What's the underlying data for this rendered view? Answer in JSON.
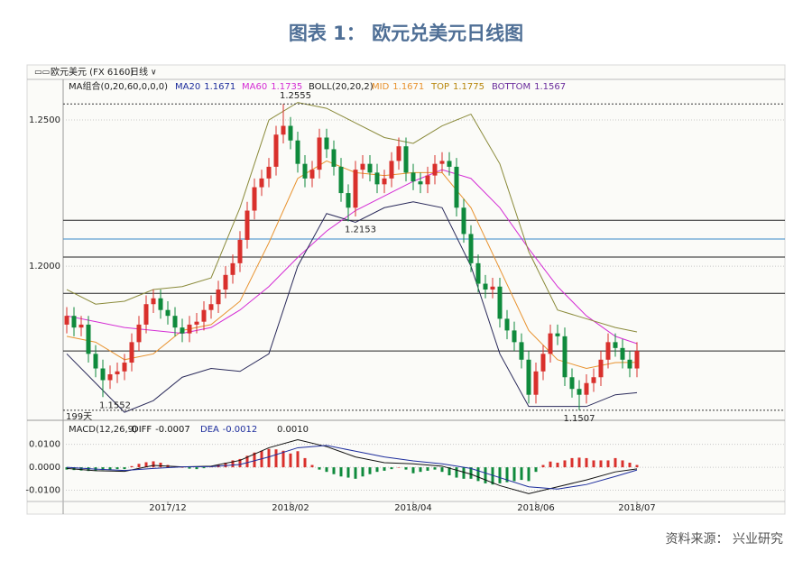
{
  "title": "图表 1： 欧元兑美元日线图",
  "source": "资料来源： 兴业研究",
  "chart_data": [
    {
      "type": "candlestick",
      "symbol": "欧元美元 (FX 6160)",
      "period": "日线",
      "span_label": "199天",
      "up_color": "#d9302c",
      "down_color": "#0f8a3c",
      "xlim": [
        -0.5,
        99.5
      ],
      "ylim": [
        1.1485,
        1.2639
      ],
      "yticks": [
        {
          "value": 1.25,
          "label": "1.2500"
        },
        {
          "value": 1.2,
          "label": "1.2000"
        }
      ],
      "grid": true,
      "hlines": [
        {
          "value": 1.2157,
          "color": "#222222"
        },
        {
          "value": 1.2093,
          "color": "#3a8ac8"
        },
        {
          "value": 1.2031,
          "color": "#222222"
        },
        {
          "value": 1.1907,
          "color": "#222222"
        },
        {
          "value": 1.171,
          "color": "#222222"
        }
      ],
      "indicator_groups": [
        {
          "title": "MA组合(0,20,60,0,0,0)",
          "items": [
            {
              "label": "MA20",
              "value": 1.1671,
              "color": "#1c2c9c",
              "line_color": "#e8922e",
              "x": [
                0,
                4,
                8,
                12,
                16,
                20,
                24,
                28,
                32,
                36,
                40,
                44,
                48,
                52,
                56,
                60,
                64,
                68,
                72,
                76,
                79
              ],
              "values": [
                1.176,
                1.174,
                1.168,
                1.17,
                1.178,
                1.18,
                1.188,
                1.208,
                1.23,
                1.236,
                1.232,
                1.231,
                1.232,
                1.232,
                1.22,
                1.199,
                1.178,
                1.168,
                1.165,
                1.167,
                1.1671
              ]
            },
            {
              "label": "MA60",
              "value": 1.1735,
              "color": "#d42cd4",
              "line_color": "#d42cd4",
              "x": [
                0,
                4,
                8,
                12,
                16,
                20,
                24,
                28,
                32,
                36,
                40,
                44,
                48,
                52,
                56,
                60,
                64,
                68,
                72,
                76,
                79
              ],
              "values": [
                1.183,
                1.181,
                1.179,
                1.178,
                1.177,
                1.179,
                1.185,
                1.193,
                1.203,
                1.212,
                1.219,
                1.224,
                1.229,
                1.233,
                1.23,
                1.22,
                1.206,
                1.193,
                1.183,
                1.176,
                1.1735
              ]
            }
          ]
        },
        {
          "title": "BOLL(20,20,2)",
          "items": [
            {
              "label": "MID",
              "value": 1.1671,
              "color": "#e8922e"
            },
            {
              "label": "TOP",
              "value": 1.1775,
              "color": "#b8860b",
              "line_color": "#8a8a3a",
              "x": [
                0,
                4,
                8,
                12,
                16,
                20,
                24,
                28,
                32,
                36,
                40,
                44,
                48,
                52,
                56,
                60,
                64,
                68,
                72,
                76,
                79
              ],
              "values": [
                1.192,
                1.187,
                1.188,
                1.192,
                1.193,
                1.196,
                1.22,
                1.25,
                1.256,
                1.254,
                1.249,
                1.244,
                1.242,
                1.248,
                1.252,
                1.235,
                1.205,
                1.185,
                1.182,
                1.179,
                1.1775
              ]
            },
            {
              "label": "BOTTOM",
              "value": 1.1567,
              "color": "#6a2c9c",
              "line_color": "#2a2a5a",
              "x": [
                0,
                4,
                8,
                12,
                16,
                20,
                24,
                28,
                32,
                36,
                40,
                44,
                48,
                52,
                56,
                60,
                64,
                68,
                72,
                76,
                79
              ],
              "values": [
                1.17,
                1.16,
                1.15,
                1.154,
                1.162,
                1.165,
                1.164,
                1.17,
                1.2,
                1.218,
                1.215,
                1.22,
                1.222,
                1.22,
                1.2,
                1.17,
                1.152,
                1.152,
                1.152,
                1.156,
                1.1567
              ]
            }
          ]
        }
      ],
      "open": [
        1.18,
        1.183,
        1.179,
        1.18,
        1.17,
        1.165,
        1.161,
        1.163,
        1.164,
        1.167,
        1.174,
        1.18,
        1.187,
        1.189,
        1.185,
        1.183,
        1.179,
        1.177,
        1.18,
        1.181,
        1.185,
        1.187,
        1.192,
        1.197,
        1.201,
        1.209,
        1.219,
        1.227,
        1.23,
        1.234,
        1.245,
        1.248,
        1.243,
        1.235,
        1.23,
        1.233,
        1.244,
        1.24,
        1.234,
        1.225,
        1.22,
        1.233,
        1.235,
        1.232,
        1.228,
        1.23,
        1.236,
        1.241,
        1.232,
        1.229,
        1.228,
        1.231,
        1.235,
        1.236,
        1.234,
        1.22,
        1.211,
        1.201,
        1.194,
        1.192,
        1.193,
        1.182,
        1.178,
        1.174,
        1.168,
        1.156,
        1.164,
        1.17,
        1.177,
        1.176,
        1.162,
        1.158,
        1.156,
        1.16,
        1.162,
        1.168,
        1.174,
        1.172,
        1.168,
        1.165
      ],
      "high": [
        1.186,
        1.186,
        1.183,
        1.183,
        1.173,
        1.168,
        1.166,
        1.167,
        1.17,
        1.177,
        1.183,
        1.19,
        1.192,
        1.192,
        1.188,
        1.186,
        1.182,
        1.183,
        1.184,
        1.188,
        1.19,
        1.195,
        1.2,
        1.204,
        1.212,
        1.222,
        1.23,
        1.233,
        1.237,
        1.248,
        1.2555,
        1.251,
        1.246,
        1.238,
        1.236,
        1.247,
        1.247,
        1.243,
        1.237,
        1.228,
        1.236,
        1.238,
        1.238,
        1.235,
        1.233,
        1.239,
        1.244,
        1.244,
        1.235,
        1.232,
        1.234,
        1.238,
        1.239,
        1.239,
        1.237,
        1.223,
        1.214,
        1.204,
        1.197,
        1.196,
        1.196,
        1.185,
        1.181,
        1.177,
        1.171,
        1.167,
        1.173,
        1.18,
        1.18,
        1.179,
        1.165,
        1.161,
        1.163,
        1.165,
        1.171,
        1.177,
        1.177,
        1.175,
        1.171,
        1.174
      ],
      "low": [
        1.177,
        1.176,
        1.176,
        1.167,
        1.162,
        1.1552,
        1.158,
        1.16,
        1.161,
        1.164,
        1.171,
        1.177,
        1.184,
        1.182,
        1.18,
        1.176,
        1.174,
        1.174,
        1.177,
        1.178,
        1.182,
        1.184,
        1.189,
        1.194,
        1.198,
        1.206,
        1.216,
        1.224,
        1.227,
        1.231,
        1.242,
        1.24,
        1.232,
        1.227,
        1.227,
        1.23,
        1.237,
        1.231,
        1.222,
        1.2153,
        1.217,
        1.23,
        1.229,
        1.225,
        1.225,
        1.227,
        1.233,
        1.229,
        1.226,
        1.225,
        1.225,
        1.228,
        1.232,
        1.231,
        1.217,
        1.208,
        1.198,
        1.191,
        1.189,
        1.189,
        1.179,
        1.175,
        1.171,
        1.165,
        1.153,
        1.153,
        1.161,
        1.167,
        1.173,
        1.159,
        1.155,
        1.1507,
        1.153,
        1.157,
        1.159,
        1.165,
        1.169,
        1.165,
        1.162,
        1.162
      ],
      "close": [
        1.183,
        1.179,
        1.18,
        1.17,
        1.165,
        1.161,
        1.163,
        1.164,
        1.167,
        1.174,
        1.18,
        1.187,
        1.189,
        1.185,
        1.183,
        1.179,
        1.177,
        1.18,
        1.181,
        1.185,
        1.187,
        1.192,
        1.197,
        1.201,
        1.209,
        1.219,
        1.227,
        1.23,
        1.234,
        1.245,
        1.248,
        1.243,
        1.235,
        1.23,
        1.233,
        1.244,
        1.24,
        1.234,
        1.225,
        1.22,
        1.233,
        1.235,
        1.232,
        1.228,
        1.23,
        1.236,
        1.241,
        1.232,
        1.229,
        1.228,
        1.231,
        1.235,
        1.236,
        1.234,
        1.22,
        1.211,
        1.201,
        1.194,
        1.192,
        1.193,
        1.182,
        1.178,
        1.174,
        1.168,
        1.156,
        1.164,
        1.17,
        1.177,
        1.176,
        1.162,
        1.158,
        1.156,
        1.16,
        1.162,
        1.168,
        1.174,
        1.172,
        1.168,
        1.165,
        1.171
      ]
    },
    {
      "type": "macd",
      "title": "MACD(12,26,9)",
      "up_color": "#d9302c",
      "down_color": "#0f8a3c",
      "xlim": [
        -0.5,
        99.5
      ],
      "ylim": [
        -0.0145,
        0.013
      ],
      "yticks": [
        {
          "value": 0.01,
          "label": "0.0100"
        },
        {
          "value": 0,
          "label": "0.0000"
        },
        {
          "value": -0.01,
          "label": "-0.0100"
        }
      ],
      "xticks": [
        {
          "value": 14,
          "label": "2017/12"
        },
        {
          "value": 31,
          "label": "2018/02"
        },
        {
          "value": 48,
          "label": "2018/04"
        },
        {
          "value": 65,
          "label": "2018/06"
        },
        {
          "value": 79,
          "label": "2018/07"
        }
      ],
      "lines": [
        {
          "label": "DIFF",
          "value": -0.0007,
          "color": "#111111",
          "x": [
            0,
            4,
            8,
            12,
            16,
            20,
            24,
            28,
            32,
            36,
            40,
            44,
            48,
            52,
            56,
            60,
            64,
            68,
            72,
            76,
            79
          ],
          "values": [
            -0.0005,
            -0.0015,
            -0.0018,
            0.0008,
            0.0002,
            0.0005,
            0.003,
            0.0085,
            0.012,
            0.009,
            0.0045,
            0.002,
            0.0015,
            0.0005,
            -0.003,
            -0.008,
            -0.0115,
            -0.0085,
            -0.0055,
            -0.002,
            -0.0007
          ]
        },
        {
          "label": "DEA",
          "value": -0.0012,
          "color": "#1c2c9c",
          "x": [
            0,
            4,
            8,
            12,
            16,
            20,
            24,
            28,
            32,
            36,
            40,
            44,
            48,
            52,
            56,
            60,
            64,
            68,
            72,
            76,
            79
          ],
          "values": [
            0,
            -0.0008,
            -0.0014,
            -0.0005,
            0.0002,
            0.0003,
            0.0012,
            0.0045,
            0.0085,
            0.0095,
            0.007,
            0.0045,
            0.0028,
            0.0015,
            -0.0005,
            -0.0045,
            -0.0085,
            -0.0095,
            -0.0075,
            -0.004,
            -0.0012
          ]
        }
      ],
      "histogram_value": 0.001,
      "histogram_value_label": "0.0010",
      "histogram": [
        -0.001,
        -0.0012,
        -0.0014,
        -0.0016,
        -0.0014,
        -0.0012,
        -0.001,
        -0.0008,
        -0.0008,
        0.0005,
        0.0015,
        0.0022,
        0.0026,
        0.002,
        0.001,
        0.0002,
        0,
        -0.0006,
        -0.0008,
        -0.0004,
        0.0004,
        0.0012,
        0.002,
        0.003,
        0.0036,
        0.005,
        0.0064,
        0.0072,
        0.008,
        0.0078,
        0.0072,
        0.006,
        0.007,
        0.004,
        0.001,
        -0.001,
        -0.002,
        -0.003,
        -0.004,
        -0.0045,
        -0.005,
        -0.004,
        -0.003,
        -0.002,
        -0.0015,
        -0.0008,
        0,
        -0.001,
        -0.0026,
        -0.002,
        -0.0015,
        -0.001,
        -0.002,
        -0.0035,
        -0.0045,
        -0.005,
        -0.005,
        -0.006,
        -0.007,
        -0.0075,
        -0.007,
        -0.0065,
        -0.006,
        -0.0055,
        -0.006,
        -0.002,
        0.001,
        0.0025,
        0.002,
        0.003,
        0.004,
        0.0042,
        0.004,
        0.003,
        0.003,
        0.003,
        0.004,
        0.003,
        0.002,
        0.001
      ]
    }
  ]
}
